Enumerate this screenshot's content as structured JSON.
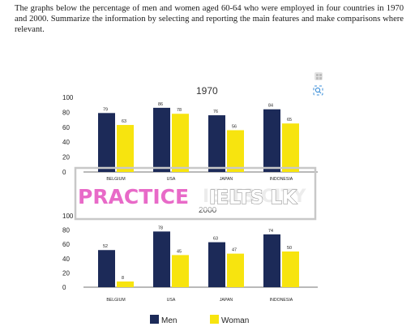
{
  "prompt_text": "The graphs below the percentage of men and women aged 60-64 who were employed in four countries in 1970 and 2000. Summarize the information by selecting and reporting the main features and make comparisons where relevant.",
  "watermark": {
    "practice": "PRACTICE",
    "ielts": "IELTS LK",
    "ghost": "IELTS CITY"
  },
  "legend": {
    "men": "Men",
    "women": "Woman"
  },
  "colors": {
    "men": "#1c2a58",
    "women": "#f7e40f",
    "axis": "#444444"
  },
  "icons": [
    "expand-icon",
    "search-icon"
  ],
  "chart_data": [
    {
      "type": "bar",
      "title": "1970",
      "categories": [
        "BELGIUM",
        "USA",
        "JAPAN",
        "INDONESIA"
      ],
      "series": [
        {
          "name": "Men",
          "values": [
            79,
            86,
            76,
            84
          ]
        },
        {
          "name": "Woman",
          "values": [
            63,
            78,
            56,
            65
          ]
        }
      ],
      "yticks": [
        0,
        20,
        40,
        60,
        80,
        100
      ],
      "ylim": [
        0,
        100
      ],
      "grid": false,
      "legend_position": "bottom"
    },
    {
      "type": "bar",
      "title": "2000",
      "categories": [
        "BELGIUM",
        "USA",
        "JAPAN",
        "INDONESIA"
      ],
      "series": [
        {
          "name": "Men",
          "values": [
            52,
            78,
            63,
            74
          ]
        },
        {
          "name": "Woman",
          "values": [
            8,
            45,
            47,
            50
          ]
        }
      ],
      "yticks": [
        0,
        20,
        40,
        60,
        80,
        100
      ],
      "ylim": [
        0,
        100
      ],
      "grid": false,
      "legend_position": "bottom"
    }
  ]
}
